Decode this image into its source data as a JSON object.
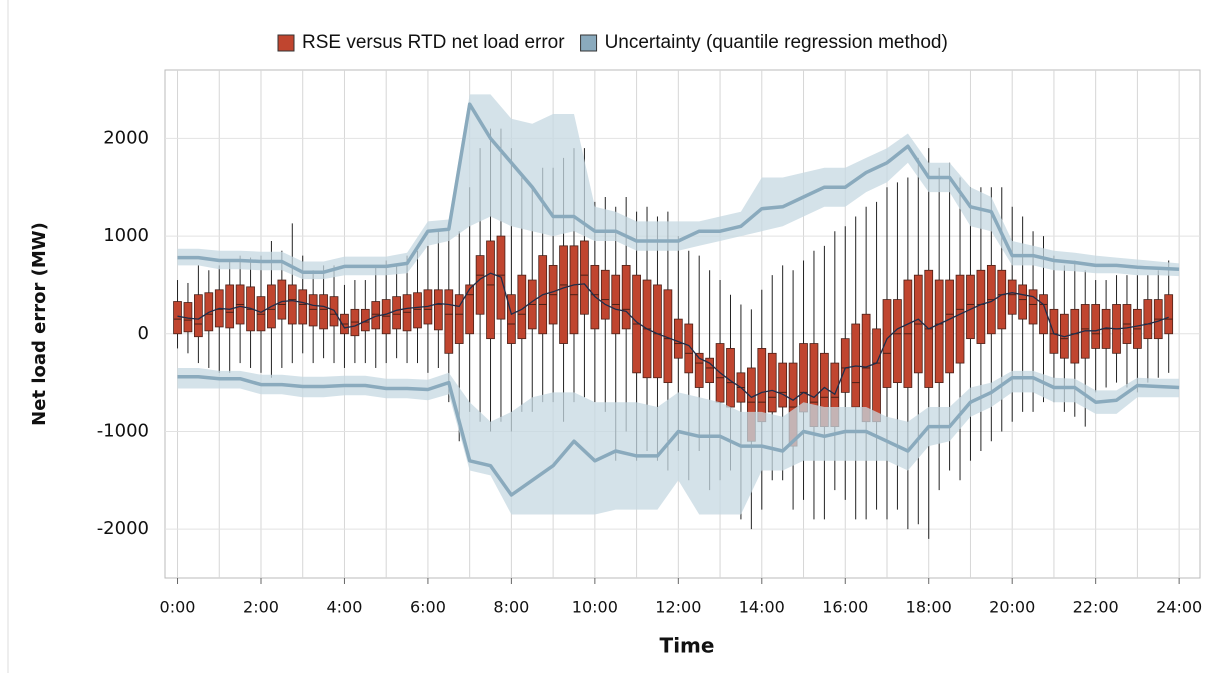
{
  "chart_data": {
    "type": "box",
    "x_label": "Time",
    "y_label": "Net load error (MW)",
    "xlim": [
      -0.3,
      24.5
    ],
    "ylim": [
      -2500,
      2700
    ],
    "grid": true,
    "legend": "top",
    "xticks": [
      {
        "value": 0,
        "label": "0:00"
      },
      {
        "value": 2,
        "label": "2:00"
      },
      {
        "value": 4,
        "label": "4:00"
      },
      {
        "value": 6,
        "label": "6:00"
      },
      {
        "value": 8,
        "label": "8:00"
      },
      {
        "value": 10,
        "label": "10:00"
      },
      {
        "value": 12,
        "label": "12:00"
      },
      {
        "value": 14,
        "label": "14:00"
      },
      {
        "value": 16,
        "label": "16:00"
      },
      {
        "value": 18,
        "label": "18:00"
      },
      {
        "value": 20,
        "label": "20:00"
      },
      {
        "value": 22,
        "label": "22:00"
      },
      {
        "value": 24,
        "label": "24:00"
      }
    ],
    "xgrid": [
      0,
      1,
      2,
      3,
      4,
      5,
      6,
      7,
      8,
      9,
      10,
      11,
      12,
      13,
      14,
      15,
      16,
      17,
      18,
      19,
      20,
      21,
      22,
      23,
      24
    ],
    "yticks": [
      -2000,
      -1000,
      0,
      1000,
      2000
    ],
    "series": [
      {
        "name": "RSE versus RTD net load error",
        "color": "#c0452f",
        "x": [
          0,
          0.25,
          0.5,
          0.75,
          1,
          1.25,
          1.5,
          1.75,
          2,
          2.25,
          2.5,
          2.75,
          3,
          3.25,
          3.5,
          3.75,
          4,
          4.25,
          4.5,
          4.75,
          5,
          5.25,
          5.5,
          5.75,
          6,
          6.25,
          6.5,
          6.75,
          7,
          7.25,
          7.5,
          7.75,
          8,
          8.25,
          8.5,
          8.75,
          9,
          9.25,
          9.5,
          9.75,
          10,
          10.25,
          10.5,
          10.75,
          11,
          11.25,
          11.5,
          11.75,
          12,
          12.25,
          12.5,
          12.75,
          13,
          13.25,
          13.5,
          13.75,
          14,
          14.25,
          14.5,
          14.75,
          15,
          15.25,
          15.5,
          15.75,
          16,
          16.25,
          16.5,
          16.75,
          17,
          17.25,
          17.5,
          17.75,
          18,
          18.25,
          18.5,
          18.75,
          19,
          19.25,
          19.5,
          19.75,
          20,
          20.25,
          20.5,
          20.75,
          21,
          21.25,
          21.5,
          21.75,
          22,
          22.25,
          22.5,
          22.75,
          23,
          23.25,
          23.5,
          23.75
        ],
        "min": [
          -150,
          -200,
          -300,
          -350,
          -400,
          -400,
          -300,
          -350,
          -400,
          -450,
          -350,
          -300,
          -200,
          -300,
          -250,
          -300,
          -350,
          -300,
          -300,
          -350,
          -300,
          -250,
          -300,
          -300,
          -400,
          -350,
          -700,
          -1100,
          -800,
          -900,
          -1000,
          -900,
          -1000,
          -800,
          -800,
          -700,
          -700,
          -900,
          -700,
          -650,
          -700,
          -800,
          -1300,
          -1000,
          -1300,
          -1200,
          -1300,
          -1400,
          -1200,
          -1500,
          -1200,
          -1600,
          -1500,
          -1400,
          -1900,
          -2000,
          -1800,
          -1500,
          -1500,
          -1800,
          -1700,
          -1900,
          -1900,
          -1600,
          -1700,
          -1900,
          -1900,
          -1800,
          -1900,
          -1800,
          -2000,
          -1950,
          -2100,
          -1600,
          -1400,
          -1500,
          -1300,
          -1200,
          -1100,
          -1000,
          -900,
          -800,
          -800,
          -700,
          -700,
          -800,
          -850,
          -950,
          -600,
          -550,
          -500,
          -550,
          -600,
          -500,
          -450,
          -400
        ],
        "q1": [
          0,
          20,
          -30,
          30,
          70,
          60,
          100,
          30,
          30,
          60,
          150,
          100,
          100,
          80,
          50,
          80,
          0,
          -20,
          30,
          50,
          0,
          50,
          30,
          60,
          100,
          40,
          -200,
          -100,
          0,
          200,
          -50,
          150,
          -100,
          -50,
          50,
          0,
          100,
          -100,
          0,
          200,
          50,
          150,
          0,
          50,
          -400,
          -450,
          -450,
          -500,
          -250,
          -400,
          -550,
          -500,
          -700,
          -750,
          -700,
          -1100,
          -900,
          -800,
          -750,
          -1150,
          -800,
          -950,
          -950,
          -950,
          -600,
          -750,
          -900,
          -900,
          -550,
          -500,
          -550,
          -400,
          -550,
          -500,
          -400,
          -300,
          -50,
          -100,
          0,
          50,
          200,
          150,
          100,
          0,
          -200,
          -250,
          -300,
          -250,
          -150,
          -150,
          -200,
          -100,
          -150,
          -50,
          -50,
          0
        ],
        "median": [
          150,
          140,
          100,
          200,
          250,
          220,
          300,
          250,
          200,
          250,
          300,
          350,
          300,
          250,
          250,
          200,
          100,
          120,
          120,
          200,
          180,
          200,
          220,
          250,
          250,
          300,
          200,
          200,
          400,
          600,
          500,
          600,
          100,
          200,
          300,
          300,
          400,
          500,
          400,
          600,
          400,
          350,
          300,
          250,
          100,
          50,
          0,
          -50,
          -100,
          -200,
          -300,
          -350,
          -450,
          -500,
          -550,
          -700,
          -700,
          -650,
          -600,
          -750,
          -600,
          -700,
          -650,
          -650,
          -350,
          -500,
          -350,
          -300,
          -200,
          0,
          0,
          100,
          50,
          100,
          200,
          250,
          300,
          300,
          350,
          400,
          400,
          350,
          300,
          300,
          0,
          -50,
          0,
          50,
          0,
          50,
          50,
          100,
          50,
          100,
          150,
          150
        ],
        "q3": [
          330,
          320,
          400,
          420,
          450,
          500,
          500,
          480,
          380,
          500,
          550,
          500,
          450,
          400,
          400,
          380,
          200,
          250,
          250,
          330,
          350,
          380,
          400,
          420,
          450,
          450,
          450,
          400,
          500,
          800,
          950,
          1000,
          400,
          600,
          550,
          800,
          700,
          900,
          900,
          950,
          700,
          650,
          600,
          700,
          600,
          550,
          500,
          450,
          150,
          100,
          -200,
          -250,
          -100,
          -150,
          -400,
          -350,
          -150,
          -200,
          -300,
          -300,
          -100,
          -100,
          -200,
          -300,
          -50,
          100,
          200,
          50,
          350,
          350,
          550,
          600,
          650,
          550,
          550,
          600,
          600,
          650,
          700,
          650,
          550,
          500,
          450,
          400,
          250,
          200,
          250,
          300,
          300,
          250,
          300,
          300,
          250,
          350,
          350,
          400
        ],
        "max": [
          550,
          520,
          700,
          650,
          700,
          760,
          800,
          780,
          800,
          950,
          850,
          1130,
          800,
          650,
          700,
          700,
          500,
          550,
          550,
          700,
          750,
          700,
          800,
          850,
          900,
          1050,
          1100,
          1050,
          1500,
          1900,
          2100,
          2100,
          1900,
          1600,
          1500,
          1700,
          1700,
          1800,
          1900,
          1900,
          1350,
          1400,
          1300,
          1400,
          1250,
          1300,
          1200,
          1250,
          1000,
          850,
          800,
          650,
          550,
          400,
          300,
          250,
          450,
          600,
          700,
          650,
          750,
          850,
          900,
          1050,
          1100,
          1200,
          1300,
          1350,
          1500,
          1550,
          1600,
          1800,
          1900,
          1700,
          1750,
          1600,
          1500,
          1500,
          1500,
          1500,
          1300,
          1200,
          1050,
          1000,
          800,
          700,
          750,
          650,
          550,
          550,
          600,
          600,
          600,
          600,
          650,
          750
        ],
        "mean": [
          180,
          160,
          150,
          220,
          260,
          250,
          280,
          260,
          220,
          280,
          330,
          340,
          320,
          290,
          280,
          240,
          60,
          80,
          130,
          180,
          200,
          240,
          260,
          270,
          280,
          310,
          300,
          280,
          460,
          560,
          620,
          580,
          200,
          250,
          330,
          400,
          430,
          470,
          500,
          510,
          380,
          300,
          250,
          230,
          120,
          50,
          0,
          -40,
          -80,
          -120,
          -250,
          -300,
          -400,
          -480,
          -550,
          -650,
          -600,
          -580,
          -620,
          -680,
          -600,
          -650,
          -550,
          -620,
          -350,
          -330,
          -340,
          -300,
          -50,
          50,
          100,
          150,
          50,
          100,
          150,
          200,
          250,
          300,
          330,
          400,
          420,
          400,
          380,
          300,
          0,
          -30,
          0,
          30,
          30,
          60,
          50,
          60,
          80,
          100,
          130,
          170
        ],
        "mean_color": "#1f2d4a"
      },
      {
        "name": "Uncertainty (quantile regression method)",
        "color": "#8aaabd",
        "band_color": "#c6d8e2",
        "x": [
          0,
          0.5,
          1,
          1.5,
          2,
          2.5,
          3,
          3.5,
          4,
          4.5,
          5,
          5.5,
          6,
          6.5,
          7,
          7.5,
          8,
          8.5,
          9,
          9.5,
          10,
          10.5,
          11,
          11.5,
          12,
          12.5,
          13,
          13.5,
          14,
          14.5,
          15,
          15.5,
          16,
          16.5,
          17,
          17.5,
          18,
          18.5,
          19,
          19.5,
          20,
          20.5,
          21,
          21.5,
          22,
          22.5,
          23,
          23.5,
          24
        ],
        "upper": [
          780,
          780,
          750,
          750,
          740,
          740,
          630,
          630,
          690,
          690,
          690,
          720,
          1050,
          1070,
          2350,
          2000,
          1750,
          1500,
          1200,
          1200,
          1050,
          1050,
          950,
          950,
          950,
          1050,
          1050,
          1100,
          1280,
          1300,
          1400,
          1500,
          1500,
          1650,
          1750,
          1920,
          1600,
          1600,
          1300,
          1250,
          800,
          800,
          750,
          730,
          700,
          700,
          680,
          670,
          660
        ],
        "upper_band_hi": [
          870,
          870,
          850,
          850,
          840,
          840,
          740,
          740,
          790,
          790,
          790,
          830,
          1150,
          1170,
          2450,
          2450,
          2200,
          2150,
          2250,
          2250,
          1300,
          1250,
          1150,
          1150,
          1150,
          1150,
          1200,
          1250,
          1600,
          1600,
          1650,
          1700,
          1700,
          1800,
          1900,
          2050,
          1750,
          1750,
          1500,
          1400,
          950,
          900,
          850,
          830,
          800,
          780,
          760,
          740,
          720
        ],
        "upper_band_lo": [
          700,
          700,
          660,
          660,
          650,
          650,
          560,
          560,
          600,
          600,
          600,
          620,
          900,
          950,
          1100,
          1200,
          1100,
          1050,
          1000,
          1050,
          950,
          950,
          850,
          850,
          850,
          900,
          950,
          1000,
          1050,
          1100,
          1200,
          1300,
          1300,
          1450,
          1550,
          1750,
          1450,
          1450,
          1100,
          1050,
          700,
          700,
          650,
          640,
          620,
          620,
          600,
          600,
          590
        ],
        "lower": [
          -440,
          -440,
          -460,
          -460,
          -520,
          -520,
          -540,
          -540,
          -530,
          -530,
          -560,
          -560,
          -570,
          -500,
          -1300,
          -1350,
          -1650,
          -1500,
          -1350,
          -1100,
          -1300,
          -1200,
          -1250,
          -1250,
          -1000,
          -1050,
          -1050,
          -1150,
          -1150,
          -1200,
          -1000,
          -1050,
          -1000,
          -1000,
          -1100,
          -1200,
          -950,
          -950,
          -700,
          -600,
          -450,
          -450,
          -550,
          -550,
          -700,
          -680,
          -530,
          -540,
          -550
        ],
        "lower_band_hi": [
          -350,
          -350,
          -380,
          -380,
          -420,
          -420,
          -440,
          -440,
          -430,
          -430,
          -460,
          -460,
          -470,
          -400,
          -700,
          -900,
          -800,
          -650,
          -600,
          -600,
          -700,
          -700,
          -700,
          -750,
          -600,
          -650,
          -700,
          -800,
          -800,
          -850,
          -700,
          -750,
          -750,
          -750,
          -850,
          -900,
          -750,
          -750,
          -550,
          -500,
          -380,
          -380,
          -450,
          -460,
          -580,
          -580,
          -450,
          -460,
          -460
        ],
        "lower_band_lo": [
          -560,
          -560,
          -560,
          -560,
          -620,
          -620,
          -650,
          -650,
          -630,
          -630,
          -660,
          -660,
          -680,
          -620,
          -1400,
          -1450,
          -1850,
          -1850,
          -1850,
          -1850,
          -1850,
          -1800,
          -1800,
          -1800,
          -1500,
          -1850,
          -1850,
          -1850,
          -1400,
          -1400,
          -1300,
          -1300,
          -1300,
          -1300,
          -1300,
          -1400,
          -1150,
          -1100,
          -850,
          -750,
          -600,
          -600,
          -700,
          -700,
          -820,
          -820,
          -650,
          -650,
          -650
        ]
      }
    ]
  }
}
